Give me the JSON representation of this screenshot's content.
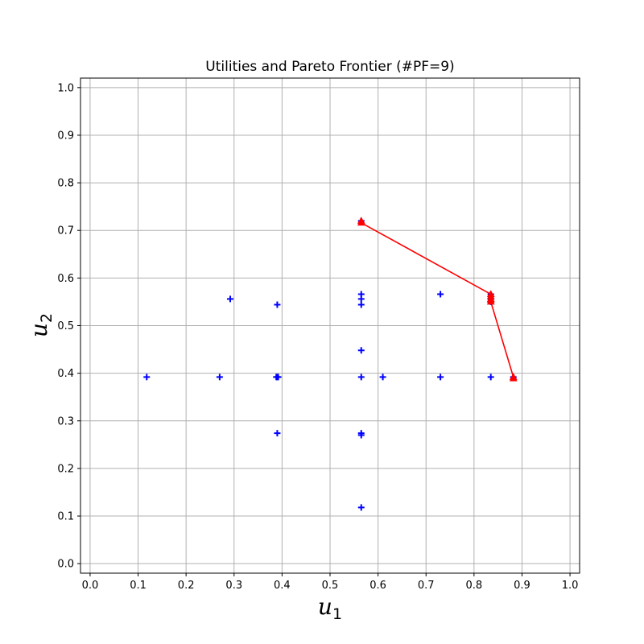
{
  "chart_data": {
    "type": "scatter",
    "title": "Utilities and Pareto Frontier (#PF=9)",
    "xlabel": {
      "main": "u",
      "sub": "1"
    },
    "ylabel": {
      "main": "u",
      "sub": "2"
    },
    "xlim": [
      -0.02,
      1.02
    ],
    "ylim": [
      -0.02,
      1.02
    ],
    "xticks": [
      "0.0",
      "0.1",
      "0.2",
      "0.3",
      "0.4",
      "0.5",
      "0.6",
      "0.7",
      "0.8",
      "0.9",
      "1.0"
    ],
    "yticks": [
      "0.0",
      "0.1",
      "0.2",
      "0.3",
      "0.4",
      "0.5",
      "0.6",
      "0.7",
      "0.8",
      "0.9",
      "1.0"
    ],
    "grid": true,
    "colors": {
      "utilities": "#0000ff",
      "pareto": "#ff0000",
      "grid": "#b0b0b0"
    },
    "series": [
      {
        "marker": "plus",
        "points": [
          [
            0.118,
            0.392
          ],
          [
            0.27,
            0.392
          ],
          [
            0.292,
            0.556
          ],
          [
            0.388,
            0.392
          ],
          [
            0.39,
            0.392
          ],
          [
            0.392,
            0.392
          ],
          [
            0.39,
            0.544
          ],
          [
            0.39,
            0.274
          ],
          [
            0.565,
            0.566
          ],
          [
            0.565,
            0.556
          ],
          [
            0.565,
            0.544
          ],
          [
            0.565,
            0.448
          ],
          [
            0.565,
            0.392
          ],
          [
            0.565,
            0.274
          ],
          [
            0.565,
            0.27
          ],
          [
            0.565,
            0.118
          ],
          [
            0.565,
            0.72
          ],
          [
            0.61,
            0.392
          ],
          [
            0.73,
            0.566
          ],
          [
            0.73,
            0.392
          ],
          [
            0.835,
            0.392
          ],
          [
            0.835,
            0.566
          ],
          [
            0.835,
            0.556
          ],
          [
            0.835,
            0.55
          ],
          [
            0.882,
            0.392
          ]
        ]
      },
      {
        "marker": "triangle",
        "line": true,
        "points": [
          [
            0.565,
            0.72
          ],
          [
            0.565,
            0.716
          ],
          [
            0.835,
            0.566
          ],
          [
            0.835,
            0.562
          ],
          [
            0.835,
            0.556
          ],
          [
            0.835,
            0.554
          ],
          [
            0.835,
            0.55
          ],
          [
            0.882,
            0.392
          ],
          [
            0.882,
            0.389
          ]
        ]
      }
    ]
  }
}
